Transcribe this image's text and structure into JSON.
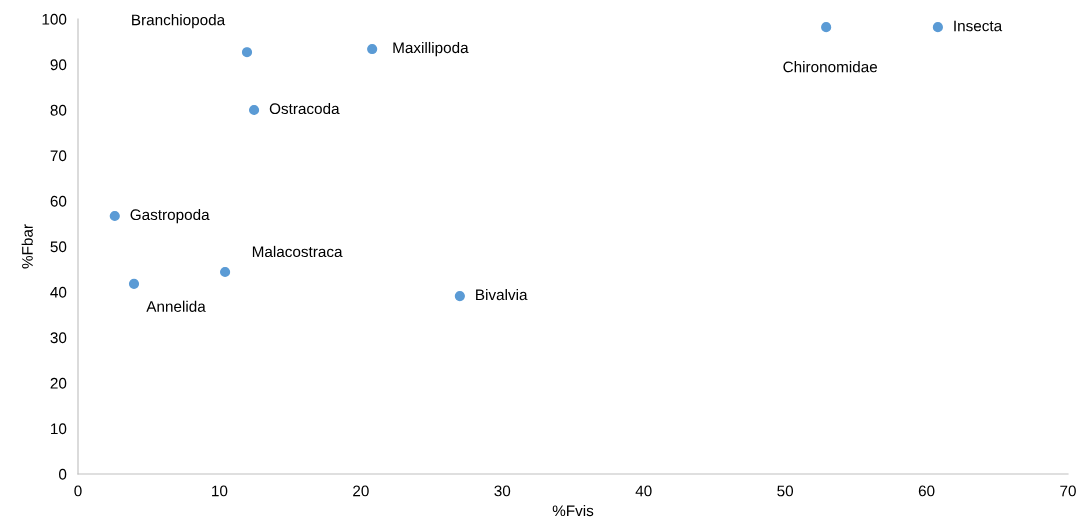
{
  "chart_data": {
    "type": "scatter",
    "xlabel": "%Fvis",
    "ylabel": "%Fbar",
    "x": [
      11.95,
      20.8,
      12.45,
      2.6,
      3.96,
      10.4,
      27.0,
      52.9,
      60.8
    ],
    "series": [
      {
        "color": "#5b9bd5",
        "values": [
          92.7,
          93.4,
          80.0,
          56.7,
          41.8,
          44.4,
          39.1,
          98.2,
          98.2
        ]
      }
    ],
    "annotations": [
      {
        "text": "Branchiopoda",
        "x": 11.95,
        "y": 92.7
      },
      {
        "text": "Maxillipoda",
        "x": 20.8,
        "y": 93.4
      },
      {
        "text": "Ostracoda",
        "x": 12.45,
        "y": 80.0
      },
      {
        "text": "Gastropoda",
        "x": 2.6,
        "y": 56.7
      },
      {
        "text": "Annelida",
        "x": 3.96,
        "y": 41.8
      },
      {
        "text": "Malacostraca",
        "x": 10.4,
        "y": 44.4
      },
      {
        "text": "Bivalvia",
        "x": 27.0,
        "y": 39.1
      },
      {
        "text": "Chironomidae",
        "x": 52.9,
        "y": 98.2
      },
      {
        "text": "Insecta",
        "x": 60.8,
        "y": 98.2
      }
    ],
    "xlim": [
      0,
      70
    ],
    "xticks": [
      0,
      10,
      20,
      30,
      40,
      50,
      60,
      70
    ],
    "ylim": [
      0,
      100
    ],
    "yticks": [
      0,
      10,
      20,
      30,
      40,
      50,
      60,
      70,
      80,
      90,
      100
    ],
    "marker": "circle",
    "grid": false,
    "legend": false
  }
}
